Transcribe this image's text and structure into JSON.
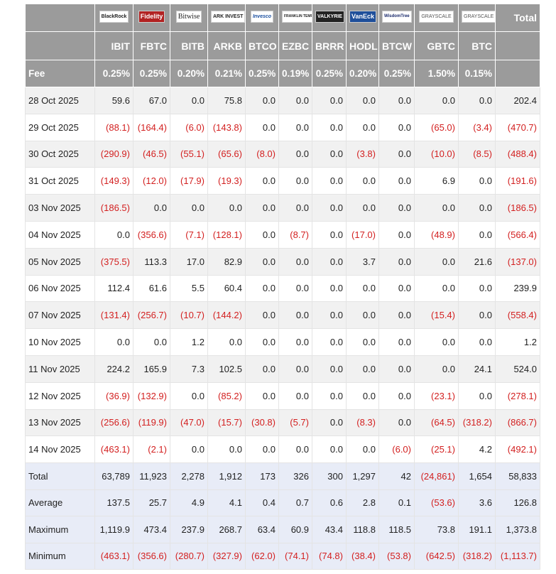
{
  "table": {
    "logos": [
      "BlackRock",
      "Fidelity",
      "Bitwise",
      "ARK INVEST",
      "Invesco",
      "FRANKLIN TEMPLETON",
      "VALKYRIE",
      "VanEck",
      "WisdomTree",
      "GRAYSCALE",
      "GRAYSCALE"
    ],
    "total_header": "Total",
    "tickers": [
      "IBIT",
      "FBTC",
      "BITB",
      "ARKB",
      "BTCO",
      "EZBC",
      "BRRR",
      "HODL",
      "BTCW",
      "GBTC",
      "BTC"
    ],
    "fee_label": "Fee",
    "fees": [
      "0.25%",
      "0.25%",
      "0.20%",
      "0.21%",
      "0.25%",
      "0.19%",
      "0.25%",
      "0.20%",
      "0.25%",
      "1.50%",
      "0.15%"
    ],
    "rows": [
      [
        "28 Oct 2025",
        "59.6",
        "67.0",
        "0.0",
        "75.8",
        "0.0",
        "0.0",
        "0.0",
        "0.0",
        "0.0",
        "0.0",
        "0.0",
        "202.4"
      ],
      [
        "29 Oct 2025",
        "(88.1)",
        "(164.4)",
        "(6.0)",
        "(143.8)",
        "0.0",
        "0.0",
        "0.0",
        "0.0",
        "0.0",
        "(65.0)",
        "(3.4)",
        "(470.7)"
      ],
      [
        "30 Oct 2025",
        "(290.9)",
        "(46.5)",
        "(55.1)",
        "(65.6)",
        "(8.0)",
        "0.0",
        "0.0",
        "(3.8)",
        "0.0",
        "(10.0)",
        "(8.5)",
        "(488.4)"
      ],
      [
        "31 Oct 2025",
        "(149.3)",
        "(12.0)",
        "(17.9)",
        "(19.3)",
        "0.0",
        "0.0",
        "0.0",
        "0.0",
        "0.0",
        "6.9",
        "0.0",
        "(191.6)"
      ],
      [
        "03 Nov 2025",
        "(186.5)",
        "0.0",
        "0.0",
        "0.0",
        "0.0",
        "0.0",
        "0.0",
        "0.0",
        "0.0",
        "0.0",
        "0.0",
        "(186.5)"
      ],
      [
        "04 Nov 2025",
        "0.0",
        "(356.6)",
        "(7.1)",
        "(128.1)",
        "0.0",
        "(8.7)",
        "0.0",
        "(17.0)",
        "0.0",
        "(48.9)",
        "0.0",
        "(566.4)"
      ],
      [
        "05 Nov 2025",
        "(375.5)",
        "113.3",
        "17.0",
        "82.9",
        "0.0",
        "0.0",
        "0.0",
        "3.7",
        "0.0",
        "0.0",
        "21.6",
        "(137.0)"
      ],
      [
        "06 Nov 2025",
        "112.4",
        "61.6",
        "5.5",
        "60.4",
        "0.0",
        "0.0",
        "0.0",
        "0.0",
        "0.0",
        "0.0",
        "0.0",
        "239.9"
      ],
      [
        "07 Nov 2025",
        "(131.4)",
        "(256.7)",
        "(10.7)",
        "(144.2)",
        "0.0",
        "0.0",
        "0.0",
        "0.0",
        "0.0",
        "(15.4)",
        "0.0",
        "(558.4)"
      ],
      [
        "10 Nov 2025",
        "0.0",
        "0.0",
        "1.2",
        "0.0",
        "0.0",
        "0.0",
        "0.0",
        "0.0",
        "0.0",
        "0.0",
        "0.0",
        "1.2"
      ],
      [
        "11 Nov 2025",
        "224.2",
        "165.9",
        "7.3",
        "102.5",
        "0.0",
        "0.0",
        "0.0",
        "0.0",
        "0.0",
        "0.0",
        "24.1",
        "524.0"
      ],
      [
        "12 Nov 2025",
        "(36.9)",
        "(132.9)",
        "0.0",
        "(85.2)",
        "0.0",
        "0.0",
        "0.0",
        "0.0",
        "0.0",
        "(23.1)",
        "0.0",
        "(278.1)"
      ],
      [
        "13 Nov 2025",
        "(256.6)",
        "(119.9)",
        "(47.0)",
        "(15.7)",
        "(30.8)",
        "(5.7)",
        "0.0",
        "(8.3)",
        "0.0",
        "(64.5)",
        "(318.2)",
        "(866.7)"
      ],
      [
        "14 Nov 2025",
        "(463.1)",
        "(2.1)",
        "0.0",
        "0.0",
        "0.0",
        "0.0",
        "0.0",
        "0.0",
        "(6.0)",
        "(25.1)",
        "4.2",
        "(492.1)"
      ]
    ],
    "summary": [
      [
        "Total",
        "63,789",
        "11,923",
        "2,278",
        "1,912",
        "173",
        "326",
        "300",
        "1,297",
        "42",
        "(24,861)",
        "1,654",
        "58,833"
      ],
      [
        "Average",
        "137.5",
        "25.7",
        "4.9",
        "4.1",
        "0.4",
        "0.7",
        "0.6",
        "2.8",
        "0.1",
        "(53.6)",
        "3.6",
        "126.8"
      ],
      [
        "Maximum",
        "1,119.9",
        "473.4",
        "237.9",
        "268.7",
        "63.4",
        "60.9",
        "43.4",
        "118.8",
        "118.5",
        "73.8",
        "191.1",
        "1,373.8"
      ],
      [
        "Minimum",
        "(463.1)",
        "(356.6)",
        "(280.7)",
        "(327.9)",
        "(62.0)",
        "(74.1)",
        "(74.8)",
        "(38.4)",
        "(53.8)",
        "(642.5)",
        "(318.2)",
        "(1,113.7)"
      ]
    ]
  }
}
